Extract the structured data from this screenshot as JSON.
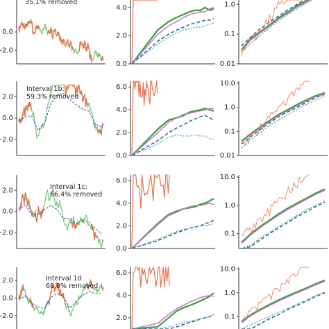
{
  "colors": {
    "raw": "#e8704a",
    "interp": "#5aba5a",
    "dashed": "#2b64a8",
    "dotted": "#4aa88a",
    "magenta": "#c77cc9",
    "green_bold": "#3b9b3b",
    "axis": "#333333"
  },
  "rows": [
    {
      "label_line1": "",
      "label_line2": "35.1% removed",
      "ts_ticks": [
        "0.0",
        "-2.0"
      ],
      "mid_ticks": [
        "4.0",
        "2.0",
        "0.0"
      ],
      "right_ticks": [
        "1.0",
        "0.1",
        "0.01"
      ]
    },
    {
      "label_line1": "Interval 1b:",
      "label_line2": "59.3% removed",
      "ts_ticks": [
        "2.0",
        "0.0",
        "-2.0"
      ],
      "mid_ticks": [
        "6.0",
        "4.0",
        "2.0",
        "0.0"
      ],
      "right_ticks": [
        "10.0",
        "1.0",
        "0.1",
        "0.01"
      ]
    },
    {
      "label_line1": "Interval 1c:",
      "label_line2": "66.4% removed",
      "ts_ticks": [
        "2.0",
        "0.0",
        "-2.0"
      ],
      "mid_ticks": [
        "6.0",
        "4.0",
        "2.0",
        "0.0"
      ],
      "right_ticks": [
        "10.0",
        "1.0",
        "0.1"
      ]
    },
    {
      "label_line1": "Interval 1d",
      "label_line2": "68.8% removed",
      "ts_ticks": [
        "2.0",
        "0.0",
        "-2.0"
      ],
      "mid_ticks": [
        "6.0",
        "4.0",
        "2.0"
      ],
      "right_ticks": [
        "10.0",
        "1.0",
        "0.1"
      ]
    }
  ],
  "chart_data": {
    "type": "line",
    "description_panels": "4 rows x 3 columns: left = time series with gaps, middle = structure functions (linear), right = structure functions (log)",
    "rows": [
      {
        "label": "35.1% removed",
        "middle_series": [
          {
            "values": [
              0.0,
              2.4,
              3.0,
              3.3,
              3.5,
              3.7,
              3.8,
              3.8,
              4.0,
              3.8,
              3.9
            ]
          },
          {
            "values": [
              0.0,
              2.1,
              2.7,
              3.0,
              3.3,
              3.5,
              3.6,
              3.7,
              3.7,
              3.9,
              4.0
            ]
          },
          {
            "values": [
              0.0,
              1.6,
              2.1,
              2.4,
              2.6,
              2.8,
              2.9,
              3.0,
              3.1,
              3.1,
              3.2
            ]
          },
          {
            "values": [
              0.0,
              1.4,
              1.9,
              2.2,
              2.4,
              2.5,
              2.6,
              2.6,
              2.7,
              2.8,
              2.9
            ]
          }
        ],
        "right_series": [
          {
            "values": [
              0.03,
              0.07,
              0.12,
              0.2,
              0.35,
              0.55,
              0.9,
              1.3,
              2.0,
              2.5
            ]
          },
          {
            "values": [
              0.04,
              0.08,
              0.15,
              0.25,
              0.4,
              0.65,
              1.0,
              1.5,
              2.2,
              3.0
            ]
          },
          {
            "values": [
              0.025,
              0.05,
              0.09,
              0.16,
              0.28,
              0.45,
              0.7,
              1.1,
              1.6,
              2.3
            ]
          }
        ]
      },
      {
        "label": "Interval 1b: 59.3% removed",
        "middle_series": [
          {
            "values": [
              0.0,
              2.3,
              3.1,
              3.3,
              3.5,
              3.8,
              3.9,
              4.0,
              4.1,
              4.0,
              3.9
            ]
          },
          {
            "values": [
              0.0,
              2.0,
              2.9,
              3.3,
              3.6,
              3.7,
              3.8,
              3.9,
              4.0,
              4.1,
              4.1
            ]
          },
          {
            "values": [
              0.0,
              1.3,
              2.0,
              2.4,
              2.7,
              3.0,
              3.2,
              3.4,
              3.5,
              3.3,
              3.1
            ]
          },
          {
            "values": [
              0.0,
              1.0,
              1.6,
              1.8,
              1.7,
              1.7,
              1.8,
              1.7,
              1.7,
              1.5,
              1.4
            ]
          }
        ],
        "right_series": [
          {
            "values": [
              0.04,
              0.08,
              0.15,
              0.28,
              0.5,
              0.8,
              1.3,
              2.0,
              3.0,
              4.0
            ]
          },
          {
            "values": [
              0.03,
              0.06,
              0.12,
              0.22,
              0.4,
              0.65,
              1.0,
              1.6,
              2.5,
              3.5
            ]
          },
          {
            "values": [
              0.02,
              0.045,
              0.09,
              0.17,
              0.3,
              0.5,
              0.8,
              1.3,
              2.0,
              3.0
            ]
          }
        ]
      },
      {
        "label": "Interval 1c: 66.4% removed",
        "middle_series": [
          {
            "values": [
              0.0,
              2.2,
              3.0,
              3.3,
              3.5,
              3.6,
              3.7,
              3.9,
              4.0,
              4.2,
              4.4
            ]
          },
          {
            "values": [
              0.0,
              2.1,
              2.9,
              3.2,
              3.5,
              3.7,
              3.8,
              3.8,
              3.9,
              4.0,
              3.9
            ]
          },
          {
            "values": [
              0.0,
              0.7,
              1.1,
              1.4,
              1.6,
              1.8,
              1.9,
              2.0,
              2.2,
              2.3,
              2.5
            ]
          },
          {
            "values": [
              0.0,
              0.8,
              1.2,
              1.5,
              1.7,
              1.8,
              1.9,
              2.0,
              2.0,
              2.1,
              2.2
            ]
          }
        ],
        "right_series": [
          {
            "values": [
              0.05,
              0.1,
              0.18,
              0.3,
              0.5,
              0.8,
              1.2,
              1.8,
              2.7,
              3.8
            ]
          },
          {
            "values": [
              0.02,
              0.035,
              0.06,
              0.1,
              0.16,
              0.25,
              0.4,
              0.6,
              0.9,
              1.3
            ]
          },
          {
            "values": [
              0.025,
              0.04,
              0.07,
              0.11,
              0.18,
              0.28,
              0.45,
              0.7,
              1.0,
              1.5
            ]
          }
        ]
      },
      {
        "label": "Interval 1d 68.8% removed",
        "middle_series": [
          {
            "values": [
              -0.5,
              1.2,
              2.0,
              2.6,
              2.9,
              3.1,
              3.3,
              3.5,
              3.7,
              3.9,
              4.2
            ]
          },
          {
            "values": [
              -0.5,
              1.5,
              2.3,
              2.8,
              3.1,
              3.4,
              3.6,
              3.8,
              3.9,
              4.0,
              3.9
            ]
          },
          {
            "values": [
              -0.5,
              0.7,
              1.0,
              1.2,
              1.4,
              1.6,
              1.7,
              1.9,
              2.0,
              2.1,
              2.3
            ]
          },
          {
            "values": [
              -0.5,
              0.9,
              1.2,
              1.4,
              1.6,
              1.7,
              1.8,
              1.9,
              2.0,
              2.1,
              2.3
            ]
          }
        ],
        "right_series": [
          {
            "values": [
              0.06,
              0.12,
              0.2,
              0.32,
              0.5,
              0.75,
              1.1,
              1.6,
              2.4,
              3.4
            ]
          },
          {
            "values": [
              0.02,
              0.03,
              0.05,
              0.08,
              0.12,
              0.2,
              0.3,
              0.45,
              0.7,
              1.0
            ]
          },
          {
            "values": [
              0.03,
              0.045,
              0.07,
              0.1,
              0.15,
              0.22,
              0.33,
              0.5,
              0.75,
              1.1
            ]
          }
        ]
      }
    ]
  }
}
